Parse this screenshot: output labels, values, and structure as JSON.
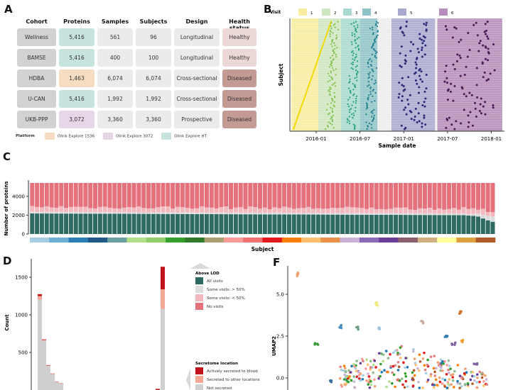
{
  "panel_labels": {
    "a": "A",
    "b": "B",
    "c": "C",
    "d": "D",
    "f": "F"
  },
  "table": {
    "headers": [
      "Cohort",
      "Proteins",
      "Samples",
      "Subjects",
      "Design",
      "Health status"
    ],
    "rows": [
      {
        "cohort": "Wellness",
        "proteins": "5,416",
        "platform": "HT",
        "samples": "561",
        "subjects": "96",
        "design": "Longitudinal",
        "health": "Healthy"
      },
      {
        "cohort": "BAMSE",
        "proteins": "5,416",
        "platform": "HT",
        "samples": "400",
        "subjects": "100",
        "design": "Longitudinal",
        "health": "Healthy"
      },
      {
        "cohort": "HDBA",
        "proteins": "1,463",
        "platform": "1536",
        "samples": "6,074",
        "subjects": "6,074",
        "design": "Cross-sectional",
        "health": "Diseased"
      },
      {
        "cohort": "U-CAN",
        "proteins": "5,416",
        "platform": "HT",
        "samples": "1,992",
        "subjects": "1,992",
        "design": "Cross-sectional",
        "health": "Diseased"
      },
      {
        "cohort": "UKB-PPP",
        "proteins": "3,072",
        "platform": "3072",
        "samples": "3,360",
        "subjects": "3,360",
        "design": "Prospective",
        "health": "Diseased"
      }
    ],
    "platform_legend": {
      "title": "Platform",
      "items": [
        {
          "key": "1536",
          "label": "Olink Explore 1536",
          "color": "#f6dcc1"
        },
        {
          "key": "3072",
          "label": "Olink Explore 3072",
          "color": "#e6d6e8"
        },
        {
          "key": "HT",
          "label": "Olink Explore HT",
          "color": "#c6e3dd"
        }
      ]
    },
    "colors": {
      "cohort": "#d2d2d2",
      "neutral": "#ebebeb",
      "healthy": "#ecd9d7",
      "diseased": "#c49a94"
    }
  },
  "chart_data": [
    {
      "id": "B",
      "type": "scatter",
      "title": "",
      "xlabel": "Sample date",
      "ylabel": "Subject",
      "x_ticks": [
        "2016-01",
        "2016-07",
        "2017-01",
        "2017-07",
        "2018-01"
      ],
      "legend_title": "Visit",
      "legend": [
        {
          "label": "1",
          "color": "#f7ec9f"
        },
        {
          "label": "2",
          "color": "#cfe6c0"
        },
        {
          "label": "3",
          "color": "#a8d8cf"
        },
        {
          "label": "4",
          "color": "#8fc3c7"
        },
        {
          "label": "5",
          "color": "#a9a9cf"
        },
        {
          "label": "6",
          "color": "#b58db8"
        }
      ],
      "visit_windows_months": [
        {
          "visit": "1",
          "start": -3.4,
          "end": 0.3,
          "point_color": "#f2d800"
        },
        {
          "visit": "2",
          "start": 0.3,
          "end": 3.4,
          "point_color": "#7fc24a"
        },
        {
          "visit": "3",
          "start": 3.4,
          "end": 6.0,
          "point_color": "#23a07a"
        },
        {
          "visit": "4",
          "start": 6.0,
          "end": 8.4,
          "point_color": "#1f7f8f"
        },
        {
          "visit": "5",
          "start": 10.3,
          "end": 16.3,
          "point_color": "#2e2a7a"
        },
        {
          "visit": "6",
          "start": 16.6,
          "end": 25.5,
          "point_color": "#4a1a55"
        }
      ],
      "n_subjects": 96
    },
    {
      "id": "C",
      "type": "bar",
      "stacked": true,
      "xlabel": "Subject",
      "ylabel": "Number of proteins",
      "y_ticks": [
        0,
        2000,
        4000
      ],
      "ylim": [
        0,
        5416
      ],
      "n_subjects": 96,
      "total": 5416,
      "series_names": [
        "All visits",
        "Some visits: > 50%",
        "Some visits: < 50%",
        "No visits"
      ],
      "series_colors": [
        "#2f6a62",
        "#dcdcdc",
        "#f4b8bf",
        "#e5717c"
      ],
      "all_visits_start": 2180,
      "all_visits_end_plateau": 2000,
      "all_visits_tail": [
        1960,
        1920,
        1850,
        1650,
        1450,
        1300
      ],
      "gt50_mean": 150,
      "lt50_mean": 520
    },
    {
      "id": "D",
      "type": "bar",
      "stacked": true,
      "xlabel": "",
      "ylabel": "Count",
      "y_ticks": [
        500,
        1000,
        1500
      ],
      "ylim": [
        0,
        1700
      ],
      "series_names": [
        "Not secreted",
        "Secreted to other locations",
        "Actively secreted to blood"
      ],
      "series_colors": [
        "#cfcfcf",
        "#f4a896",
        "#c0131b"
      ],
      "bins": [
        {
          "bin": 1,
          "not": 1200,
          "other": 50,
          "blood": 25
        },
        {
          "bin": 2,
          "not": 655,
          "other": 10,
          "blood": 8
        },
        {
          "bin": 3,
          "not": 320,
          "other": 6,
          "blood": 5
        },
        {
          "bin": 4,
          "not": 210,
          "other": 5,
          "blood": 4
        },
        {
          "bin": 5,
          "not": 105,
          "other": 4,
          "blood": 3
        },
        {
          "bin": 6,
          "not": 85,
          "other": 3,
          "blood": 3
        },
        {
          "bin": "last",
          "not": 1080,
          "other": 260,
          "blood": 300
        }
      ],
      "legend_above_lod": {
        "title": "Above LOD",
        "items": [
          {
            "label": "All visits",
            "color": "#2f6a62"
          },
          {
            "label": "Some visits: > 50%",
            "color": "#dcdcdc"
          },
          {
            "label": "Some visits: < 50%",
            "color": "#f4b8bf"
          },
          {
            "label": "No visits",
            "color": "#e5717c"
          }
        ]
      },
      "legend_secretome": {
        "title": "Secretome location",
        "items": [
          {
            "label": "Actively secreted to blood",
            "color": "#c0131b"
          },
          {
            "label": "Secreted to other locations",
            "color": "#f4a896"
          },
          {
            "label": "Not secreted",
            "color": "#cfcfcf"
          }
        ]
      }
    },
    {
      "id": "F",
      "type": "scatter",
      "xlabel": "",
      "ylabel": "UMAP2",
      "y_ticks": [
        0.0,
        2.5,
        5.0
      ],
      "y_tick_labels": [
        "0.0",
        "2.5",
        "5.0"
      ],
      "ylim": [
        -0.5,
        6.8
      ],
      "clusters": [
        {
          "x": -6.2,
          "y": 6.2,
          "color": "#f0a070"
        },
        {
          "x": -5.0,
          "y": 2.0,
          "color": "#3a9a3a"
        },
        {
          "x": -3.4,
          "y": 3.05,
          "color": "#4a90c0"
        },
        {
          "x": -2.4,
          "y": 2.95,
          "color": "#6aa080"
        },
        {
          "x": -1.1,
          "y": 4.4,
          "color": "#f4ec80"
        },
        {
          "x": -0.9,
          "y": 2.95,
          "color": "#a0c8d8"
        },
        {
          "x": 1.8,
          "y": 3.35,
          "color": "#c8a898"
        },
        {
          "x": 4.2,
          "y": 3.95,
          "color": "#d07830"
        },
        {
          "x": 3.3,
          "y": 2.55,
          "color": "#3880b0"
        },
        {
          "x": 4.3,
          "y": 2.2,
          "color": "#f0a030"
        },
        {
          "x": 3.8,
          "y": 2.0,
          "color": "#8060a0"
        },
        {
          "x": 5.2,
          "y": 0.9,
          "color": "#8060a0"
        },
        {
          "x": -4.0,
          "y": -0.2,
          "color": "#3a70a0"
        },
        {
          "x": -3.1,
          "y": -0.1,
          "color": "#40a050"
        }
      ]
    }
  ],
  "colorbar_c": [
    "#a6cee3",
    "#6baed6",
    "#2b7fb8",
    "#1f5a8a",
    "#6aa1a0",
    "#b2df8a",
    "#90cc6a",
    "#33a02c",
    "#2e7a28",
    "#a8a070",
    "#fb9a99",
    "#f07070",
    "#e31a1c",
    "#ff7f00",
    "#fdbf6f",
    "#e89048",
    "#cab2d6",
    "#8a6ab8",
    "#6a3d9a",
    "#8a6070",
    "#d0b080",
    "#ffff99",
    "#e0a040",
    "#b15928"
  ]
}
